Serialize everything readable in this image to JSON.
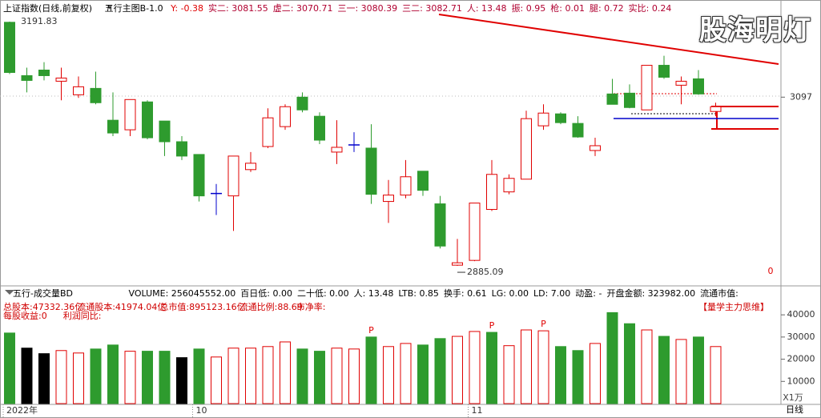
{
  "header": {
    "title": "上证指数(日线,前复权)",
    "indicator": "五行主图B-1.0",
    "items": [
      "Y: -0.38",
      "实二: 3081.55",
      "虚二: 3070.71",
      "三一: 3080.39",
      "三二: 3082.71",
      "人: 13.48",
      "振: 0.95",
      "枪: 0.01",
      "腿: 0.72",
      "实比: 0.24"
    ],
    "watermark": "股海明灯"
  },
  "volume_header": {
    "indicator": "五行-成交量BD",
    "items": [
      "VOLUME: 256045552.00",
      "百日低: 0.00",
      "二十低: 0.00",
      "人: 13.48",
      "LTB: 0.85",
      "换手: 0.61",
      "LG: 0.00",
      "LD: 7.00",
      "动盈: -",
      "开盘金额: 323982.00",
      "流通市值:"
    ],
    "line2": [
      "总股本:47332.36亿",
      "流通股本:41974.04亿",
      "总市值:895123.16亿",
      "流通比例:88.69",
      "市净率:"
    ],
    "line3": [
      "每股收益:0",
      "利润同比:"
    ],
    "tag": "【量学主力思维】",
    "unit": "X1万"
  },
  "period": "日线",
  "chart_data": [
    {
      "type": "candlestick",
      "categories": [
        "2022年",
        null,
        null,
        null,
        null,
        null,
        null,
        null,
        null,
        null,
        null,
        "10",
        null,
        null,
        null,
        null,
        null,
        null,
        null,
        null,
        null,
        null,
        null,
        null,
        null,
        null,
        null,
        "11",
        null,
        null,
        null,
        null,
        null,
        null,
        null,
        null,
        null,
        null,
        null,
        null,
        null,
        null
      ],
      "ohlc": [
        [
          3191,
          3191.83,
          3126,
          3128
        ],
        [
          3124,
          3134,
          3103,
          3118
        ],
        [
          3131,
          3141,
          3118,
          3124
        ],
        [
          3117,
          3134,
          3093,
          3121
        ],
        [
          3100,
          3123,
          3096,
          3110
        ],
        [
          3108,
          3129,
          3088,
          3090
        ],
        [
          3068,
          3103,
          3048,
          3052
        ],
        [
          3056,
          3094,
          3048,
          3094
        ],
        [
          3091,
          3093,
          3044,
          3046
        ],
        [
          3067,
          3067,
          3023,
          3041
        ],
        [
          3041,
          3048,
          3018,
          3023
        ],
        [
          3025,
          3025,
          2966,
          2973
        ],
        [
          2976,
          2988,
          2949,
          2976
        ],
        [
          2973,
          3023,
          2929,
          3023
        ],
        [
          3006,
          3028,
          3003,
          3014
        ],
        [
          3035,
          3083,
          3033,
          3071
        ],
        [
          3060,
          3088,
          3056,
          3085
        ],
        [
          3097,
          3103,
          3078,
          3081
        ],
        [
          3073,
          3078,
          3038,
          3043
        ],
        [
          3028,
          3068,
          3013,
          3034
        ],
        [
          3037,
          3053,
          3028,
          3037
        ],
        [
          3033,
          3063,
          2963,
          2975
        ],
        [
          2966,
          2993,
          2939,
          2974
        ],
        [
          2974,
          3018,
          2970,
          2997
        ],
        [
          3004,
          3004,
          2973,
          2980
        ],
        [
          2963,
          2973,
          2907,
          2910
        ],
        [
          2886,
          2919,
          2885.09,
          2889
        ],
        [
          2892,
          2964,
          2891,
          2964
        ],
        [
          2956,
          3018,
          2954,
          3000
        ],
        [
          2978,
          3000,
          2975,
          2995
        ],
        [
          2994,
          3080,
          2994,
          3070
        ],
        [
          3061,
          3088,
          3056,
          3077
        ],
        [
          3076,
          3078,
          3063,
          3065
        ],
        [
          3064,
          3073,
          3046,
          3047
        ],
        [
          3030,
          3046,
          3023,
          3036
        ],
        [
          3101,
          3120,
          3088,
          3088
        ],
        [
          3102,
          3113,
          3083,
          3084
        ],
        [
          3081,
          3137,
          3081,
          3137
        ],
        [
          3137,
          3149,
          3120,
          3122
        ],
        [
          3112,
          3123,
          3088,
          3117
        ],
        [
          3120,
          3131,
          3100,
          3101
        ],
        [
          3079,
          3090,
          3073,
          3085
        ]
      ],
      "up_color": "#e00000",
      "down_color": "#2e9b2e",
      "flat_color": "#0000cc",
      "ylim": [
        2862,
        3219
      ],
      "yticks": [
        3097
      ],
      "annotations": [
        "0"
      ]
    },
    {
      "type": "bar",
      "values": [
        31800,
        25000,
        22500,
        23900,
        22800,
        24600,
        26400,
        23600,
        23600,
        23600,
        20700,
        24600,
        21000,
        25000,
        25000,
        25700,
        27800,
        24600,
        23600,
        25000,
        24600,
        30000,
        25700,
        27100,
        26400,
        29300,
        30300,
        32500,
        32100,
        26100,
        33200,
        32800,
        25700,
        23900,
        27100,
        41000,
        36000,
        33200,
        30300,
        28900,
        30000,
        25700
      ],
      "colors": [
        "#2e9b2e",
        "#000000",
        "#000000",
        "#e00000",
        "#e00000",
        "#2e9b2e",
        "#2e9b2e",
        "#e00000",
        "#2e9b2e",
        "#2e9b2e",
        "#000000",
        "#2e9b2e",
        "#e00000",
        "#e00000",
        "#e00000",
        "#e00000",
        "#e00000",
        "#2e9b2e",
        "#2e9b2e",
        "#e00000",
        "#e00000",
        "#2e9b2e",
        "#e00000",
        "#e00000",
        "#2e9b2e",
        "#2e9b2e",
        "#e00000",
        "#e00000",
        "#2e9b2e",
        "#e00000",
        "#e00000",
        "#e00000",
        "#2e9b2e",
        "#2e9b2e",
        "#e00000",
        "#2e9b2e",
        "#2e9b2e",
        "#e00000",
        "#2e9b2e",
        "#e00000",
        "#2e9b2e",
        "#e00000"
      ],
      "hollow_color": "#e00000",
      "markers": [
        null,
        null,
        null,
        null,
        null,
        null,
        null,
        null,
        null,
        null,
        null,
        null,
        null,
        null,
        null,
        null,
        null,
        null,
        null,
        null,
        null,
        "P",
        null,
        null,
        null,
        null,
        null,
        null,
        "P",
        null,
        null,
        "P",
        null,
        null,
        null,
        null,
        null,
        null,
        null,
        null,
        null,
        null
      ],
      "ylim": [
        0,
        48000
      ],
      "yticks": [
        10000,
        20000,
        30000,
        40000
      ]
    }
  ]
}
